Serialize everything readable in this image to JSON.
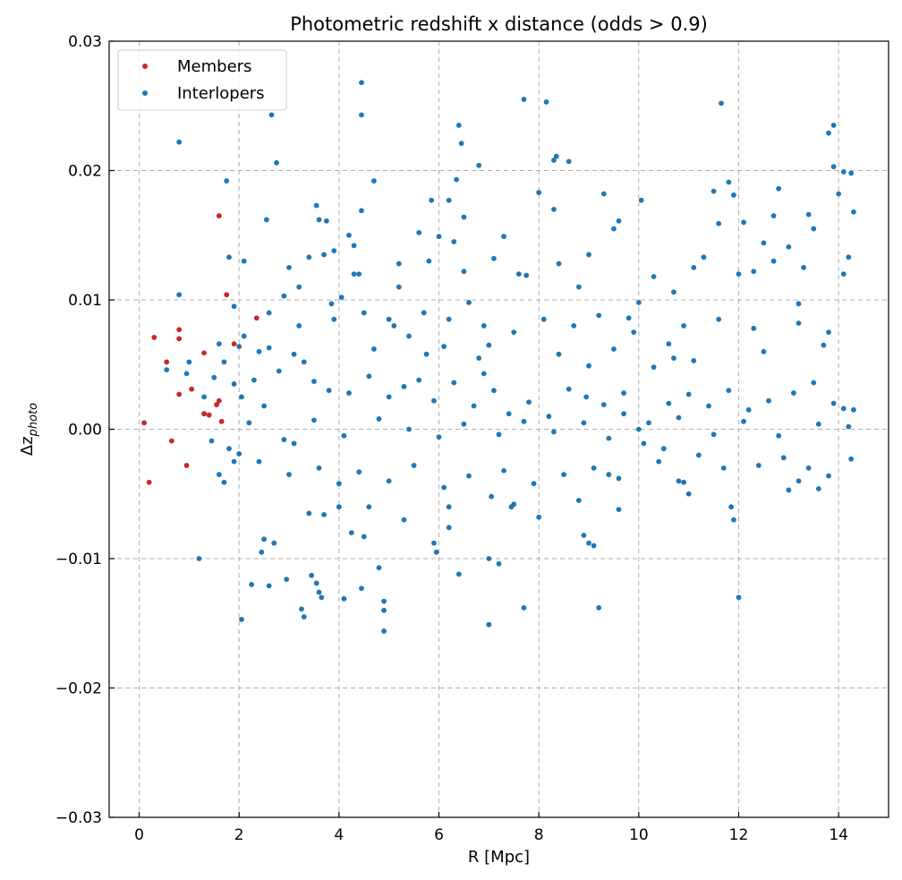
{
  "chart_data": {
    "type": "scatter",
    "title": "Photometric redshift x distance (odds > 0.9)",
    "xlabel": "R [Mpc]",
    "ylabel_base": "Δz",
    "ylabel_sub": "photo",
    "xlim": [
      -0.6,
      15.0
    ],
    "ylim": [
      -0.03,
      0.03
    ],
    "xticks": [
      0,
      2,
      4,
      6,
      8,
      10,
      12,
      14
    ],
    "xtick_labels": [
      "0",
      "2",
      "4",
      "6",
      "8",
      "10",
      "12",
      "14"
    ],
    "yticks": [
      -0.03,
      -0.02,
      -0.01,
      0.0,
      0.01,
      0.02,
      0.03
    ],
    "ytick_labels": [
      "−0.03",
      "−0.02",
      "−0.01",
      "0.00",
      "0.01",
      "0.02",
      "0.03"
    ],
    "grid": true,
    "legend_position": "top-left",
    "series": [
      {
        "name": "Members",
        "color": "#c62828",
        "points": [
          [
            0.1,
            0.0005
          ],
          [
            0.2,
            -0.0041
          ],
          [
            0.3,
            0.0071
          ],
          [
            0.55,
            0.0052
          ],
          [
            0.65,
            -0.0009
          ],
          [
            0.8,
            0.0077
          ],
          [
            0.8,
            0.007
          ],
          [
            0.8,
            0.0027
          ],
          [
            0.95,
            -0.0028
          ],
          [
            1.05,
            0.0031
          ],
          [
            1.3,
            0.0059
          ],
          [
            1.3,
            0.0012
          ],
          [
            1.55,
            0.0019
          ],
          [
            1.6,
            0.0165
          ],
          [
            1.65,
            0.0006
          ],
          [
            1.75,
            0.0104
          ],
          [
            1.9,
            0.0066
          ],
          [
            2.35,
            0.0086
          ],
          [
            1.4,
            0.0011
          ],
          [
            1.6,
            0.0022
          ]
        ]
      },
      {
        "name": "Interlopers",
        "color": "#1f77b4",
        "points": [
          [
            0.55,
            0.0046
          ],
          [
            0.8,
            0.0104
          ],
          [
            0.8,
            0.0222
          ],
          [
            0.95,
            0.0043
          ],
          [
            1.0,
            0.0052
          ],
          [
            1.2,
            -0.01
          ],
          [
            1.3,
            0.0012
          ],
          [
            1.45,
            -0.0009
          ],
          [
            1.6,
            -0.0035
          ],
          [
            1.7,
            -0.0041
          ],
          [
            1.75,
            0.0192
          ],
          [
            1.8,
            0.0133
          ],
          [
            1.9,
            0.0095
          ],
          [
            2.0,
            0.0064
          ],
          [
            2.1,
            0.0072
          ],
          [
            2.0,
            -0.0019
          ],
          [
            2.05,
            -0.0147
          ],
          [
            2.25,
            -0.012
          ],
          [
            2.45,
            -0.0095
          ],
          [
            2.5,
            -0.0085
          ],
          [
            2.6,
            0.0063
          ],
          [
            2.65,
            0.0243
          ],
          [
            2.75,
            0.0206
          ],
          [
            2.55,
            0.0162
          ],
          [
            2.6,
            -0.0121
          ],
          [
            2.7,
            -0.0088
          ],
          [
            2.9,
            0.0103
          ],
          [
            2.95,
            -0.0116
          ],
          [
            3.1,
            -0.0011
          ],
          [
            3.2,
            0.011
          ],
          [
            3.25,
            -0.0139
          ],
          [
            3.3,
            -0.0145
          ],
          [
            3.4,
            0.0133
          ],
          [
            3.45,
            -0.0113
          ],
          [
            3.55,
            0.0173
          ],
          [
            3.6,
            0.0162
          ],
          [
            3.55,
            -0.0119
          ],
          [
            3.6,
            -0.0126
          ],
          [
            3.65,
            -0.013
          ],
          [
            3.7,
            -0.0066
          ],
          [
            3.75,
            0.0161
          ],
          [
            3.85,
            0.0097
          ],
          [
            3.9,
            0.0138
          ],
          [
            4.0,
            -0.0042
          ],
          [
            4.0,
            -0.006
          ],
          [
            4.05,
            0.0102
          ],
          [
            4.1,
            -0.0131
          ],
          [
            4.2,
            0.015
          ],
          [
            4.25,
            -0.008
          ],
          [
            4.3,
            0.0142
          ],
          [
            4.4,
            0.012
          ],
          [
            4.45,
            0.0268
          ],
          [
            4.45,
            0.0243
          ],
          [
            4.45,
            0.0169
          ],
          [
            4.45,
            -0.0123
          ],
          [
            4.5,
            -0.0083
          ],
          [
            4.7,
            0.0192
          ],
          [
            4.8,
            -0.0107
          ],
          [
            4.9,
            -0.0133
          ],
          [
            4.9,
            -0.014
          ],
          [
            4.9,
            -0.0156
          ],
          [
            5.0,
            0.0085
          ],
          [
            5.2,
            0.011
          ],
          [
            5.4,
            0.0072
          ],
          [
            5.6,
            0.0152
          ],
          [
            5.75,
            0.0058
          ],
          [
            5.85,
            0.0177
          ],
          [
            5.9,
            -0.0088
          ],
          [
            5.95,
            -0.0095
          ],
          [
            6.0,
            0.0149
          ],
          [
            6.1,
            0.0064
          ],
          [
            6.2,
            0.0177
          ],
          [
            6.2,
            -0.0076
          ],
          [
            6.3,
            0.0145
          ],
          [
            6.35,
            0.0193
          ],
          [
            6.4,
            0.0235
          ],
          [
            6.45,
            0.0221
          ],
          [
            6.5,
            0.0164
          ],
          [
            6.6,
            0.0098
          ],
          [
            6.4,
            -0.0112
          ],
          [
            6.8,
            0.0204
          ],
          [
            6.9,
            0.0043
          ],
          [
            7.0,
            -0.01
          ],
          [
            7.0,
            -0.0151
          ],
          [
            7.05,
            -0.0052
          ],
          [
            7.2,
            -0.0104
          ],
          [
            7.3,
            0.0149
          ],
          [
            7.45,
            -0.006
          ],
          [
            7.7,
            0.0255
          ],
          [
            7.7,
            -0.0138
          ],
          [
            7.75,
            0.0119
          ],
          [
            8.0,
            0.0183
          ],
          [
            8.15,
            0.0253
          ],
          [
            8.3,
            0.0208
          ],
          [
            8.35,
            0.0211
          ],
          [
            8.3,
            0.017
          ],
          [
            8.6,
            0.0207
          ],
          [
            8.8,
            0.011
          ],
          [
            8.9,
            -0.0082
          ],
          [
            9.0,
            -0.0088
          ],
          [
            9.0,
            0.0049
          ],
          [
            9.1,
            -0.009
          ],
          [
            9.2,
            -0.0138
          ],
          [
            9.3,
            0.0182
          ],
          [
            9.4,
            -0.0035
          ],
          [
            9.5,
            0.0155
          ],
          [
            9.6,
            0.0161
          ],
          [
            9.7,
            0.0028
          ],
          [
            9.8,
            0.0086
          ],
          [
            10.0,
            0.0098
          ],
          [
            10.05,
            0.0177
          ],
          [
            10.1,
            -0.0011
          ],
          [
            10.3,
            0.0048
          ],
          [
            10.5,
            -0.0015
          ],
          [
            10.6,
            0.0066
          ],
          [
            10.7,
            0.0106
          ],
          [
            10.8,
            -0.004
          ],
          [
            10.9,
            -0.0041
          ],
          [
            11.1,
            0.0053
          ],
          [
            11.3,
            0.0133
          ],
          [
            11.5,
            0.0184
          ],
          [
            11.6,
            0.0159
          ],
          [
            11.65,
            0.0252
          ],
          [
            11.8,
            0.0191
          ],
          [
            11.9,
            0.0181
          ],
          [
            11.85,
            -0.006
          ],
          [
            12.0,
            -0.013
          ],
          [
            12.1,
            0.016
          ],
          [
            12.3,
            0.0122
          ],
          [
            12.5,
            0.0144
          ],
          [
            12.7,
            0.0165
          ],
          [
            12.8,
            0.0186
          ],
          [
            13.0,
            0.0141
          ],
          [
            13.0,
            -0.0047
          ],
          [
            13.2,
            0.0097
          ],
          [
            13.4,
            0.0166
          ],
          [
            13.5,
            0.0155
          ],
          [
            13.6,
            -0.0046
          ],
          [
            13.8,
            0.0229
          ],
          [
            13.9,
            0.0235
          ],
          [
            13.9,
            0.0203
          ],
          [
            14.0,
            0.0182
          ],
          [
            14.1,
            0.0199
          ],
          [
            14.2,
            0.0133
          ],
          [
            14.25,
            0.0198
          ],
          [
            14.3,
            0.0168
          ],
          [
            14.3,
            0.0015
          ],
          [
            14.25,
            -0.0023
          ],
          [
            14.1,
            0.0016
          ],
          [
            13.8,
            -0.0036
          ],
          [
            2.3,
            0.0038
          ],
          [
            2.8,
            0.0045
          ],
          [
            3.3,
            0.0052
          ],
          [
            3.5,
            0.0037
          ],
          [
            3.8,
            0.003
          ],
          [
            4.2,
            0.0028
          ],
          [
            4.6,
            0.0041
          ],
          [
            5.0,
            0.0025
          ],
          [
            5.3,
            0.0033
          ],
          [
            5.6,
            0.0038
          ],
          [
            5.9,
            0.0022
          ],
          [
            6.3,
            0.0036
          ],
          [
            6.7,
            0.0018
          ],
          [
            7.1,
            0.003
          ],
          [
            7.4,
            0.0012
          ],
          [
            7.8,
            0.0021
          ],
          [
            8.2,
            0.001
          ],
          [
            8.6,
            0.0031
          ],
          [
            8.95,
            0.0025
          ],
          [
            9.3,
            0.0019
          ],
          [
            9.7,
            0.0012
          ],
          [
            10.2,
            0.0005
          ],
          [
            10.6,
            0.002
          ],
          [
            11.0,
            0.0027
          ],
          [
            11.4,
            0.0018
          ],
          [
            11.8,
            0.003
          ],
          [
            12.2,
            0.0015
          ],
          [
            12.6,
            0.0022
          ],
          [
            13.1,
            0.0028
          ],
          [
            13.5,
            0.0036
          ],
          [
            13.9,
            0.002
          ],
          [
            2.4,
            -0.0025
          ],
          [
            3.0,
            -0.0035
          ],
          [
            3.6,
            -0.003
          ],
          [
            4.4,
            -0.0033
          ],
          [
            5.0,
            -0.004
          ],
          [
            5.5,
            -0.0028
          ],
          [
            6.1,
            -0.0045
          ],
          [
            6.6,
            -0.0036
          ],
          [
            7.3,
            -0.0032
          ],
          [
            7.9,
            -0.0042
          ],
          [
            8.5,
            -0.0035
          ],
          [
            9.1,
            -0.003
          ],
          [
            9.6,
            -0.0038
          ],
          [
            10.4,
            -0.0025
          ],
          [
            11.2,
            -0.002
          ],
          [
            11.7,
            -0.003
          ],
          [
            12.4,
            -0.0028
          ],
          [
            12.9,
            -0.0022
          ],
          [
            13.4,
            -0.003
          ],
          [
            2.6,
            0.009
          ],
          [
            3.2,
            0.008
          ],
          [
            3.9,
            0.0085
          ],
          [
            4.5,
            0.009
          ],
          [
            5.1,
            0.008
          ],
          [
            5.7,
            0.009
          ],
          [
            6.2,
            0.0085
          ],
          [
            6.9,
            0.008
          ],
          [
            7.5,
            0.0075
          ],
          [
            8.1,
            0.0085
          ],
          [
            8.7,
            0.008
          ],
          [
            9.2,
            0.0088
          ],
          [
            9.9,
            0.0075
          ],
          [
            10.9,
            0.008
          ],
          [
            11.6,
            0.0085
          ],
          [
            12.3,
            0.0078
          ],
          [
            13.2,
            0.0082
          ],
          [
            13.8,
            0.0075
          ],
          [
            2.2,
            0.0005
          ],
          [
            2.9,
            -0.0008
          ],
          [
            3.5,
            0.0007
          ],
          [
            4.1,
            -0.0005
          ],
          [
            4.8,
            0.0008
          ],
          [
            5.4,
            0.0
          ],
          [
            6.0,
            -0.0006
          ],
          [
            6.5,
            0.0004
          ],
          [
            7.2,
            -0.0004
          ],
          [
            7.7,
            0.0006
          ],
          [
            8.3,
            -0.0002
          ],
          [
            8.9,
            0.0005
          ],
          [
            9.4,
            -0.0007
          ],
          [
            10.0,
            0.0
          ],
          [
            10.8,
            0.0009
          ],
          [
            11.5,
            -0.0004
          ],
          [
            12.1,
            0.0006
          ],
          [
            12.8,
            -0.0005
          ],
          [
            13.6,
            0.0004
          ],
          [
            14.2,
            0.0002
          ],
          [
            3.0,
            0.0125
          ],
          [
            3.7,
            0.0135
          ],
          [
            4.3,
            0.012
          ],
          [
            5.2,
            0.0128
          ],
          [
            5.8,
            0.013
          ],
          [
            6.5,
            0.0122
          ],
          [
            7.1,
            0.0132
          ],
          [
            7.6,
            0.012
          ],
          [
            8.4,
            0.0128
          ],
          [
            9.0,
            0.0135
          ],
          [
            10.3,
            0.0118
          ],
          [
            11.1,
            0.0125
          ],
          [
            12.0,
            0.012
          ],
          [
            12.7,
            0.013
          ],
          [
            13.3,
            0.0125
          ],
          [
            14.1,
            0.012
          ],
          [
            2.1,
            0.013
          ],
          [
            3.4,
            -0.0065
          ],
          [
            4.6,
            -0.006
          ],
          [
            5.3,
            -0.007
          ],
          [
            6.2,
            -0.006
          ],
          [
            7.5,
            -0.0058
          ],
          [
            8.0,
            -0.0068
          ],
          [
            8.8,
            -0.0055
          ],
          [
            9.6,
            -0.0062
          ],
          [
            11.0,
            -0.005
          ],
          [
            11.9,
            -0.007
          ],
          [
            13.2,
            -0.004
          ],
          [
            2.4,
            0.006
          ],
          [
            3.1,
            0.0058
          ],
          [
            4.7,
            0.0062
          ],
          [
            6.8,
            0.0055
          ],
          [
            7.0,
            0.0065
          ],
          [
            8.4,
            0.0058
          ],
          [
            9.5,
            0.0062
          ],
          [
            10.7,
            0.0055
          ],
          [
            12.5,
            0.006
          ],
          [
            13.7,
            0.0065
          ],
          [
            1.7,
            0.0052
          ],
          [
            1.5,
            0.004
          ],
          [
            1.3,
            0.0025
          ],
          [
            1.9,
            0.0035
          ],
          [
            2.05,
            0.0025
          ],
          [
            1.8,
            -0.0015
          ],
          [
            1.9,
            -0.0025
          ],
          [
            2.5,
            0.0018
          ],
          [
            1.6,
            0.0066
          ]
        ]
      }
    ]
  }
}
